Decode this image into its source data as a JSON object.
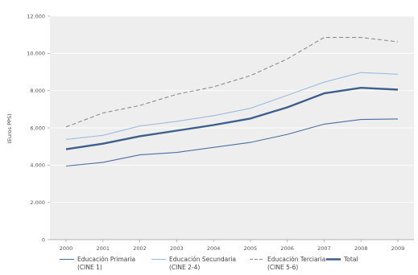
{
  "chart_data": {
    "type": "line",
    "title": "",
    "xlabel": "",
    "ylabel": "(Euros PPS)",
    "categories": [
      "2000",
      "2001",
      "2002",
      "2003",
      "2004",
      "2005",
      "2006",
      "2007",
      "2008",
      "2009"
    ],
    "y_ticks": [
      "0",
      "2.000",
      "4.000",
      "6.000",
      "8.000",
      "10.000",
      "12.000"
    ],
    "ylim": [
      0,
      12000
    ],
    "grid": "horizontal",
    "legend_position": "bottom",
    "series": [
      {
        "name": "Educación Primaria (CINE 1)",
        "legend_lines": [
          "Educación Primaria",
          "(CINE 1)"
        ],
        "color": "#4a6fa0",
        "style": "solid-thin",
        "values": [
          3950,
          4150,
          4550,
          4680,
          4950,
          5220,
          5650,
          6200,
          6450,
          6480
        ]
      },
      {
        "name": "Educación Secundaria (CINE 2-4)",
        "legend_lines": [
          "Educación Secundaria",
          "(CINE 2-4)"
        ],
        "color": "#9dbde0",
        "style": "solid-thin",
        "values": [
          5380,
          5600,
          6100,
          6350,
          6650,
          7050,
          7750,
          8450,
          8970,
          8880
        ]
      },
      {
        "name": "Educación Terciaria (CINE 5-6)",
        "legend_lines": [
          "Educación Terciaria",
          "(CINE 5-6)"
        ],
        "color": "#8c8c8c",
        "style": "dashed",
        "values": [
          6050,
          6800,
          7200,
          7800,
          8200,
          8800,
          9700,
          10850,
          10850,
          10620
        ]
      },
      {
        "name": "Total",
        "legend_lines": [
          "Total"
        ],
        "color": "#3d5f8c",
        "style": "solid-thick",
        "values": [
          4850,
          5150,
          5550,
          5850,
          6150,
          6500,
          7100,
          7850,
          8150,
          8050
        ]
      }
    ]
  }
}
